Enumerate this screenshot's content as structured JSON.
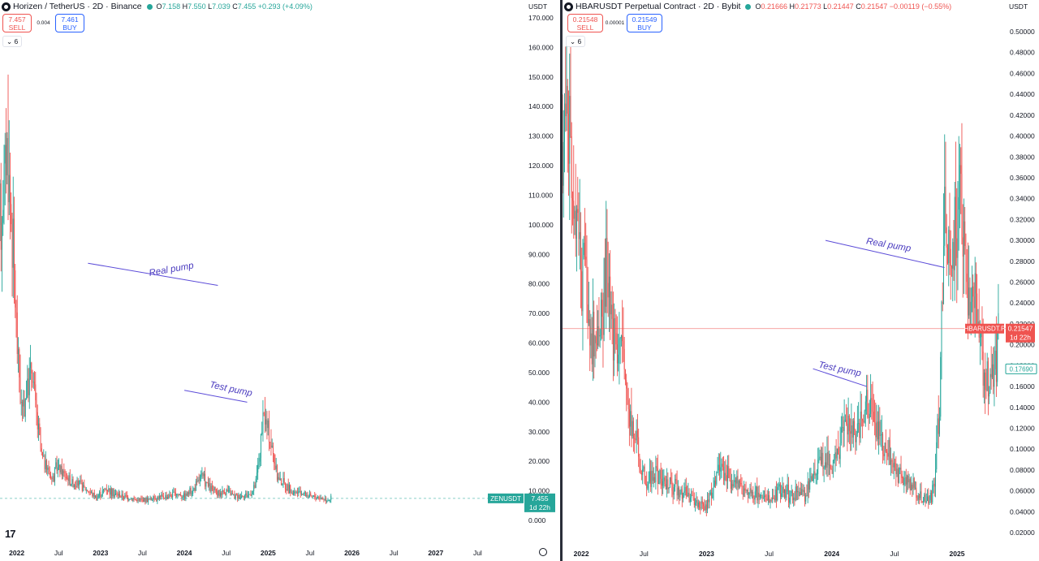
{
  "chart_data": [
    {
      "type": "candlestick",
      "title": "Horizen / TetherUS · 2D · Binance",
      "ohlc": {
        "o": "7.158",
        "h": "7.550",
        "l": "7.039",
        "c": "7.455",
        "change": "+0.293 (+4.09%)"
      },
      "sell_price": "7.457",
      "buy_price": "7.461",
      "spread": "0.004",
      "indicator_count": "6",
      "y_unit": "USDT",
      "y_ticks": [
        "170.000",
        "160.000",
        "150.000",
        "140.000",
        "130.000",
        "120.000",
        "110.000",
        "100.000",
        "90.000",
        "80.000",
        "70.000",
        "60.000",
        "50.000",
        "40.000",
        "30.000",
        "20.000",
        "10.000",
        "0.000"
      ],
      "ylim": [
        0,
        170
      ],
      "x_ticks": [
        {
          "label": "2022",
          "t": 2022.0,
          "year": true
        },
        {
          "label": "Jul",
          "t": 2022.5
        },
        {
          "label": "2023",
          "t": 2023.0,
          "year": true
        },
        {
          "label": "Jul",
          "t": 2023.5
        },
        {
          "label": "2024",
          "t": 2024.0,
          "year": true
        },
        {
          "label": "Jul",
          "t": 2024.5
        },
        {
          "label": "2025",
          "t": 2025.0,
          "year": true
        },
        {
          "label": "Jul",
          "t": 2025.5
        },
        {
          "label": "2026",
          "t": 2026.0,
          "year": true
        },
        {
          "label": "Jul",
          "t": 2026.5
        },
        {
          "label": "2027",
          "t": 2027.0,
          "year": true
        },
        {
          "label": "Jul",
          "t": 2027.5
        }
      ],
      "xlim": [
        2021.8,
        2028.0
      ],
      "last_price": {
        "symbol": "ZENUSDT",
        "value": "7.455",
        "countdown": "1d 22h",
        "numeric": 7.455
      },
      "price_path": [
        [
          2021.8,
          100
        ],
        [
          2021.88,
          128
        ],
        [
          2021.9,
          118
        ],
        [
          2021.95,
          95
        ],
        [
          2022.0,
          63
        ],
        [
          2022.06,
          36
        ],
        [
          2022.12,
          44
        ],
        [
          2022.18,
          52
        ],
        [
          2022.24,
          34
        ],
        [
          2022.3,
          21
        ],
        [
          2022.36,
          18
        ],
        [
          2022.42,
          14
        ],
        [
          2022.48,
          18
        ],
        [
          2022.55,
          16
        ],
        [
          2022.65,
          13
        ],
        [
          2022.75,
          12
        ],
        [
          2022.85,
          10
        ],
        [
          2022.95,
          8
        ],
        [
          2023.08,
          11
        ],
        [
          2023.15,
          9
        ],
        [
          2023.3,
          8
        ],
        [
          2023.45,
          6.8
        ],
        [
          2023.6,
          7.2
        ],
        [
          2023.75,
          8
        ],
        [
          2023.9,
          9
        ],
        [
          2024.0,
          8.5
        ],
        [
          2024.1,
          10
        ],
        [
          2024.2,
          15
        ],
        [
          2024.3,
          11
        ],
        [
          2024.4,
          9
        ],
        [
          2024.5,
          10
        ],
        [
          2024.6,
          8
        ],
        [
          2024.7,
          8.5
        ],
        [
          2024.8,
          9
        ],
        [
          2024.85,
          12
        ],
        [
          2024.9,
          23
        ],
        [
          2024.95,
          35
        ],
        [
          2025.0,
          30
        ],
        [
          2025.05,
          24
        ],
        [
          2025.1,
          15
        ],
        [
          2025.2,
          12
        ],
        [
          2025.3,
          9
        ],
        [
          2025.4,
          9.5
        ],
        [
          2025.5,
          8
        ],
        [
          2025.6,
          7.8
        ],
        [
          2025.7,
          7.2
        ],
        [
          2025.75,
          7.455
        ]
      ],
      "annotations": [
        {
          "text": "Real pump",
          "line": [
            [
              2022.85,
              87
            ],
            [
              2024.4,
              79.5
            ]
          ],
          "label_at": [
            2023.85,
            84
          ],
          "angle": -10
        },
        {
          "text": "Test pump",
          "line": [
            [
              2024.0,
              44
            ],
            [
              2024.75,
              40
            ]
          ],
          "label_at": [
            2024.55,
            43.5
          ],
          "angle": 12
        }
      ]
    },
    {
      "type": "candlestick",
      "title": "HBARUSDT Perpetual Contract · 2D · Bybit",
      "ohlc": {
        "o": "0.21666",
        "h": "0.21773",
        "l": "0.21447",
        "c": "0.21547",
        "change": "−0.00119 (−0.55%)"
      },
      "sell_price": "0.21548",
      "buy_price": "0.21549",
      "spread": "0.00001",
      "indicator_count": "6",
      "y_unit": "USDT",
      "y_ticks": [
        "0.50000",
        "0.48000",
        "0.46000",
        "0.44000",
        "0.42000",
        "0.40000",
        "0.38000",
        "0.36000",
        "0.34000",
        "0.32000",
        "0.30000",
        "0.28000",
        "0.26000",
        "0.24000",
        "0.22000",
        "0.20000",
        "0.18000",
        "0.16000",
        "0.14000",
        "0.12000",
        "0.10000",
        "0.08000",
        "0.06000",
        "0.04000",
        "0.02000"
      ],
      "ylim": [
        0.02,
        0.5
      ],
      "x_ticks": [
        {
          "label": "2022",
          "t": 2022.0,
          "year": true
        },
        {
          "label": "Jul",
          "t": 2022.5
        },
        {
          "label": "2023",
          "t": 2023.0,
          "year": true
        },
        {
          "label": "Jul",
          "t": 2023.5
        },
        {
          "label": "2024",
          "t": 2024.0,
          "year": true
        },
        {
          "label": "Jul",
          "t": 2024.5
        },
        {
          "label": "2025",
          "t": 2025.0,
          "year": true
        }
      ],
      "xlim": [
        2021.85,
        2025.35
      ],
      "last_price": {
        "symbol": "HBARUSDT.P",
        "value": "0.21547",
        "countdown": "1d 22h",
        "numeric": 0.21547
      },
      "secondary_price": {
        "value": "0.17690",
        "numeric": 0.1769
      },
      "price_path": [
        [
          2021.85,
          0.39
        ],
        [
          2021.88,
          0.45
        ],
        [
          2021.92,
          0.36
        ],
        [
          2021.96,
          0.3
        ],
        [
          2022.0,
          0.28
        ],
        [
          2022.05,
          0.24
        ],
        [
          2022.1,
          0.2
        ],
        [
          2022.15,
          0.22
        ],
        [
          2022.2,
          0.26
        ],
        [
          2022.25,
          0.22
        ],
        [
          2022.32,
          0.2
        ],
        [
          2022.38,
          0.14
        ],
        [
          2022.45,
          0.1
        ],
        [
          2022.5,
          0.07
        ],
        [
          2022.6,
          0.075
        ],
        [
          2022.7,
          0.065
        ],
        [
          2022.8,
          0.062
        ],
        [
          2022.9,
          0.05
        ],
        [
          2023.0,
          0.044
        ],
        [
          2023.05,
          0.06
        ],
        [
          2023.1,
          0.085
        ],
        [
          2023.2,
          0.07
        ],
        [
          2023.3,
          0.06
        ],
        [
          2023.4,
          0.056
        ],
        [
          2023.5,
          0.05
        ],
        [
          2023.6,
          0.06
        ],
        [
          2023.7,
          0.055
        ],
        [
          2023.8,
          0.06
        ],
        [
          2023.85,
          0.072
        ],
        [
          2023.9,
          0.09
        ],
        [
          2023.95,
          0.095
        ],
        [
          2024.0,
          0.085
        ],
        [
          2024.05,
          0.1
        ],
        [
          2024.1,
          0.12
        ],
        [
          2024.15,
          0.125
        ],
        [
          2024.2,
          0.11
        ],
        [
          2024.25,
          0.13
        ],
        [
          2024.3,
          0.15
        ],
        [
          2024.35,
          0.115
        ],
        [
          2024.4,
          0.11
        ],
        [
          2024.45,
          0.095
        ],
        [
          2024.5,
          0.085
        ],
        [
          2024.6,
          0.07
        ],
        [
          2024.7,
          0.055
        ],
        [
          2024.78,
          0.05
        ],
        [
          2024.82,
          0.07
        ],
        [
          2024.86,
          0.14
        ],
        [
          2024.88,
          0.24
        ],
        [
          2024.9,
          0.33
        ],
        [
          2024.94,
          0.27
        ],
        [
          2024.98,
          0.31
        ],
        [
          2025.02,
          0.34
        ],
        [
          2025.06,
          0.28
        ],
        [
          2025.1,
          0.22
        ],
        [
          2025.14,
          0.26
        ],
        [
          2025.18,
          0.2
        ],
        [
          2025.22,
          0.17
        ],
        [
          2025.26,
          0.15
        ],
        [
          2025.3,
          0.18
        ],
        [
          2025.33,
          0.21547
        ]
      ],
      "annotations": [
        {
          "text": "Real pump",
          "line": [
            [
              2023.95,
              0.3
            ],
            [
              2024.9,
              0.274
            ]
          ],
          "label_at": [
            2024.45,
            0.293
          ],
          "angle": 10
        },
        {
          "text": "Test pump",
          "line": [
            [
              2023.85,
              0.177
            ],
            [
              2024.28,
              0.16
            ]
          ],
          "label_at": [
            2024.06,
            0.174
          ],
          "angle": 12
        }
      ]
    }
  ]
}
